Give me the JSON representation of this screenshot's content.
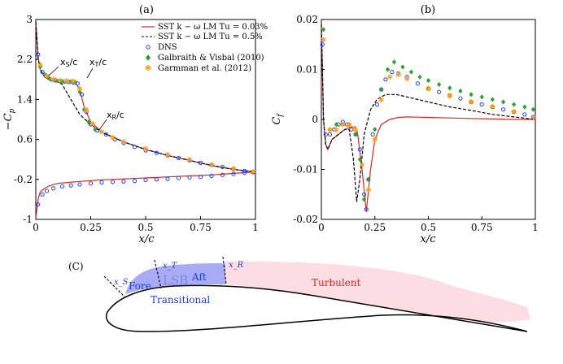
{
  "chart_data": [
    {
      "type": "line",
      "panel_label": "(a)",
      "ylabel": "-C_p",
      "xlabel": "x/c",
      "xlim": [
        0,
        1
      ],
      "ylim": [
        -1,
        3
      ],
      "xticks": [
        "0",
        "0.25",
        "0.5",
        "0.75",
        "1"
      ],
      "yticks": [
        "-1",
        "-0.2",
        "0.6",
        "1.4",
        "2.2",
        "3"
      ],
      "legend": [
        {
          "label": "SST k − ω LM Tu = 0.03%",
          "style": "solid",
          "color": "#d62728"
        },
        {
          "label": "SST k − ω LM Tu = 0.5%",
          "style": "dashed",
          "color": "#000000"
        },
        {
          "label": "DNS",
          "style": "marker-circle",
          "color": "#1f3fff"
        },
        {
          "label": "Galbraith & Visbal (2010)",
          "style": "marker-diamond",
          "color": "#2ca02c"
        },
        {
          "label": "Garmman et al. (2012)",
          "style": "marker-star",
          "color": "#ff9f1a"
        }
      ],
      "annotations": [
        "x_S/c",
        "x_T/c",
        "x_R/c"
      ],
      "series": [
        {
          "name": "SST Tu=0.03% suction",
          "x": [
            0,
            0.005,
            0.01,
            0.02,
            0.04,
            0.06,
            0.08,
            0.1,
            0.12,
            0.15,
            0.18,
            0.2,
            0.22,
            0.25,
            0.3,
            0.4,
            0.5,
            0.6,
            0.7,
            0.8,
            0.9,
            1.0
          ],
          "y": [
            2.95,
            2.6,
            2.25,
            2.0,
            1.85,
            1.8,
            1.78,
            1.76,
            1.75,
            1.75,
            1.74,
            1.6,
            1.25,
            0.95,
            0.75,
            0.55,
            0.4,
            0.28,
            0.18,
            0.08,
            0.0,
            -0.05
          ]
        },
        {
          "name": "SST Tu=0.5% suction",
          "x": [
            0,
            0.005,
            0.01,
            0.02,
            0.04,
            0.06,
            0.08,
            0.1,
            0.12,
            0.14,
            0.16,
            0.18,
            0.2,
            0.25,
            0.3,
            0.4,
            0.5,
            0.6,
            0.7,
            0.8,
            0.9,
            1.0
          ],
          "y": [
            2.95,
            2.6,
            2.25,
            2.0,
            1.85,
            1.8,
            1.78,
            1.76,
            1.7,
            1.55,
            1.4,
            1.25,
            1.1,
            0.9,
            0.74,
            0.55,
            0.4,
            0.28,
            0.18,
            0.08,
            0.0,
            -0.05
          ]
        },
        {
          "name": "SST pressure side",
          "x": [
            0,
            0.005,
            0.01,
            0.02,
            0.04,
            0.06,
            0.1,
            0.15,
            0.2,
            0.3,
            0.4,
            0.5,
            0.6,
            0.7,
            0.8,
            0.9,
            1.0
          ],
          "y": [
            -0.95,
            -0.8,
            -0.6,
            -0.45,
            -0.38,
            -0.33,
            -0.28,
            -0.26,
            -0.24,
            -0.21,
            -0.19,
            -0.17,
            -0.15,
            -0.13,
            -0.11,
            -0.08,
            -0.05
          ]
        },
        {
          "name": "DNS suction",
          "x": [
            0.01,
            0.03,
            0.05,
            0.07,
            0.09,
            0.11,
            0.13,
            0.15,
            0.17,
            0.19,
            0.21,
            0.23,
            0.25,
            0.28,
            0.32,
            0.36,
            0.4,
            0.45,
            0.5,
            0.55,
            0.6,
            0.65,
            0.7,
            0.75,
            0.8,
            0.85,
            0.9,
            0.95,
            0.99
          ],
          "y": [
            2.3,
            1.95,
            1.86,
            1.8,
            1.78,
            1.77,
            1.76,
            1.75,
            1.74,
            1.72,
            1.5,
            1.15,
            0.9,
            0.78,
            0.7,
            0.6,
            0.53,
            0.45,
            0.38,
            0.33,
            0.28,
            0.23,
            0.18,
            0.13,
            0.09,
            0.05,
            0.01,
            -0.03,
            -0.06
          ]
        },
        {
          "name": "DNS pressure side",
          "x": [
            0.01,
            0.03,
            0.05,
            0.08,
            0.12,
            0.16,
            0.2,
            0.25,
            0.3,
            0.35,
            0.4,
            0.45,
            0.5,
            0.55,
            0.6,
            0.65,
            0.7,
            0.75,
            0.8,
            0.85,
            0.9,
            0.95,
            0.99
          ],
          "y": [
            -0.7,
            -0.5,
            -0.43,
            -0.38,
            -0.34,
            -0.32,
            -0.3,
            -0.28,
            -0.26,
            -0.25,
            -0.24,
            -0.23,
            -0.21,
            -0.2,
            -0.19,
            -0.17,
            -0.16,
            -0.15,
            -0.13,
            -0.11,
            -0.09,
            -0.07,
            -0.05
          ]
        },
        {
          "name": "Galbraith & Visbal suction",
          "x": [
            0.02,
            0.04,
            0.06,
            0.08,
            0.1,
            0.12,
            0.14,
            0.16,
            0.18,
            0.2,
            0.22,
            0.24,
            0.27
          ],
          "y": [
            2.05,
            1.9,
            1.83,
            1.79,
            1.77,
            1.76,
            1.76,
            1.76,
            1.74,
            1.55,
            1.2,
            0.95,
            0.8
          ]
        },
        {
          "name": "Garmman et al. suction",
          "x": [
            0.02,
            0.05,
            0.08,
            0.11,
            0.14,
            0.17,
            0.2,
            0.23,
            0.26,
            0.3,
            0.35,
            0.4,
            0.5,
            0.6,
            0.7,
            0.8,
            0.9,
            0.99
          ],
          "y": [
            2.1,
            1.88,
            1.81,
            1.79,
            1.78,
            1.77,
            1.62,
            1.2,
            0.92,
            0.76,
            0.64,
            0.56,
            0.42,
            0.3,
            0.2,
            0.1,
            0.02,
            -0.04
          ]
        }
      ]
    },
    {
      "type": "line",
      "panel_label": "(b)",
      "ylabel": "C_f",
      "xlabel": "x/c",
      "xlim": [
        0,
        1
      ],
      "ylim": [
        -0.02,
        0.02
      ],
      "xticks": [
        "0",
        "0.25",
        "0.5",
        "0.75",
        "1"
      ],
      "yticks": [
        "-0.02",
        "-0.01",
        "0",
        "0.01",
        "0.02"
      ],
      "series": [
        {
          "name": "SST Tu=0.03%",
          "x": [
            0,
            0.005,
            0.01,
            0.02,
            0.03,
            0.05,
            0.08,
            0.11,
            0.14,
            0.16,
            0.17,
            0.19,
            0.21,
            0.23,
            0.25,
            0.28,
            0.32,
            0.36,
            0.4,
            0.5,
            0.6,
            0.7,
            0.8,
            0.9,
            1.0
          ],
          "y": [
            0.019,
            0.01,
            0.0,
            -0.005,
            -0.006,
            -0.004,
            -0.003,
            -0.002,
            -0.0015,
            -0.0015,
            -0.003,
            -0.01,
            -0.0185,
            -0.01,
            -0.004,
            -0.001,
            0.0,
            0.0004,
            0.0005,
            0.0004,
            0.0003,
            0.0002,
            0.0001,
            0.0,
            0.0
          ]
        },
        {
          "name": "SST Tu=0.5%",
          "x": [
            0,
            0.005,
            0.01,
            0.02,
            0.03,
            0.05,
            0.08,
            0.11,
            0.13,
            0.15,
            0.165,
            0.18,
            0.2,
            0.23,
            0.26,
            0.3,
            0.35,
            0.4,
            0.5,
            0.6,
            0.7,
            0.8,
            0.9,
            1.0
          ],
          "y": [
            0.019,
            0.01,
            0.0,
            -0.005,
            -0.006,
            -0.004,
            -0.003,
            -0.002,
            -0.002,
            -0.008,
            -0.0165,
            -0.012,
            -0.003,
            0.002,
            0.004,
            0.005,
            0.005,
            0.0045,
            0.0035,
            0.0025,
            0.0018,
            0.001,
            0.0005,
            0.0
          ]
        },
        {
          "name": "DNS",
          "x": [
            0.005,
            0.02,
            0.04,
            0.06,
            0.08,
            0.1,
            0.12,
            0.14,
            0.16,
            0.18,
            0.2,
            0.21,
            0.22,
            0.24,
            0.26,
            0.28,
            0.3,
            0.33,
            0.36,
            0.4,
            0.45,
            0.5,
            0.55,
            0.6,
            0.65,
            0.7,
            0.75,
            0.8,
            0.85,
            0.9,
            0.95,
            0.99
          ],
          "y": [
            0.015,
            -0.003,
            -0.003,
            -0.002,
            -0.001,
            -0.0005,
            -0.001,
            -0.002,
            -0.003,
            -0.006,
            -0.015,
            -0.018,
            -0.012,
            -0.003,
            0.003,
            0.006,
            0.008,
            0.0095,
            0.0092,
            0.0085,
            0.0072,
            0.0062,
            0.0055,
            0.0048,
            0.0042,
            0.0035,
            0.003,
            0.0025,
            0.002,
            0.0015,
            0.001,
            0.0005
          ]
        },
        {
          "name": "Galbraith & Visbal (2010)",
          "x": [
            0.01,
            0.04,
            0.07,
            0.1,
            0.13,
            0.16,
            0.18,
            0.2,
            0.22,
            0.25,
            0.28,
            0.31,
            0.34,
            0.38,
            0.42,
            0.46,
            0.5,
            0.55,
            0.6,
            0.65,
            0.7,
            0.75,
            0.8,
            0.85,
            0.9,
            0.95,
            0.99
          ],
          "y": [
            0.018,
            -0.002,
            -0.001,
            -0.001,
            -0.001,
            -0.003,
            -0.008,
            -0.016,
            -0.012,
            -0.002,
            0.006,
            0.01,
            0.0115,
            0.0105,
            0.0095,
            0.0085,
            0.0078,
            0.007,
            0.0063,
            0.0057,
            0.005,
            0.0045,
            0.004,
            0.0035,
            0.003,
            0.0025,
            0.002
          ]
        },
        {
          "name": "Garmman et al. (2012)",
          "x": [
            0.01,
            0.04,
            0.07,
            0.1,
            0.13,
            0.16,
            0.19,
            0.22,
            0.25,
            0.28,
            0.32,
            0.36,
            0.4,
            0.5,
            0.6,
            0.7,
            0.8,
            0.9,
            0.99
          ],
          "y": [
            0.016,
            -0.002,
            -0.002,
            -0.001,
            -0.001,
            -0.002,
            -0.009,
            -0.014,
            -0.004,
            0.004,
            0.0085,
            0.009,
            0.0082,
            0.0062,
            0.0048,
            0.0036,
            0.0026,
            0.0016,
            0.0005
          ]
        }
      ]
    }
  ],
  "schematic": {
    "label": "(C)",
    "x_s": "x_S",
    "x_t": "x_T",
    "x_r": "x_R",
    "fore": "Fore",
    "aft": "Aft",
    "lsb": "LSB",
    "transitional": "Transitional",
    "turbulent": "Turbulent"
  },
  "colors": {
    "sst_low": "#d62728",
    "sst_high": "#000000",
    "dns": "#1f3fff",
    "galbraith": "#2ca02c",
    "garmman": "#ff9f1a",
    "bubble": "#a8acf5",
    "turbulent_region": "#fbdde3",
    "blue_text": "#1f3fd6",
    "red_text": "#d62728"
  }
}
